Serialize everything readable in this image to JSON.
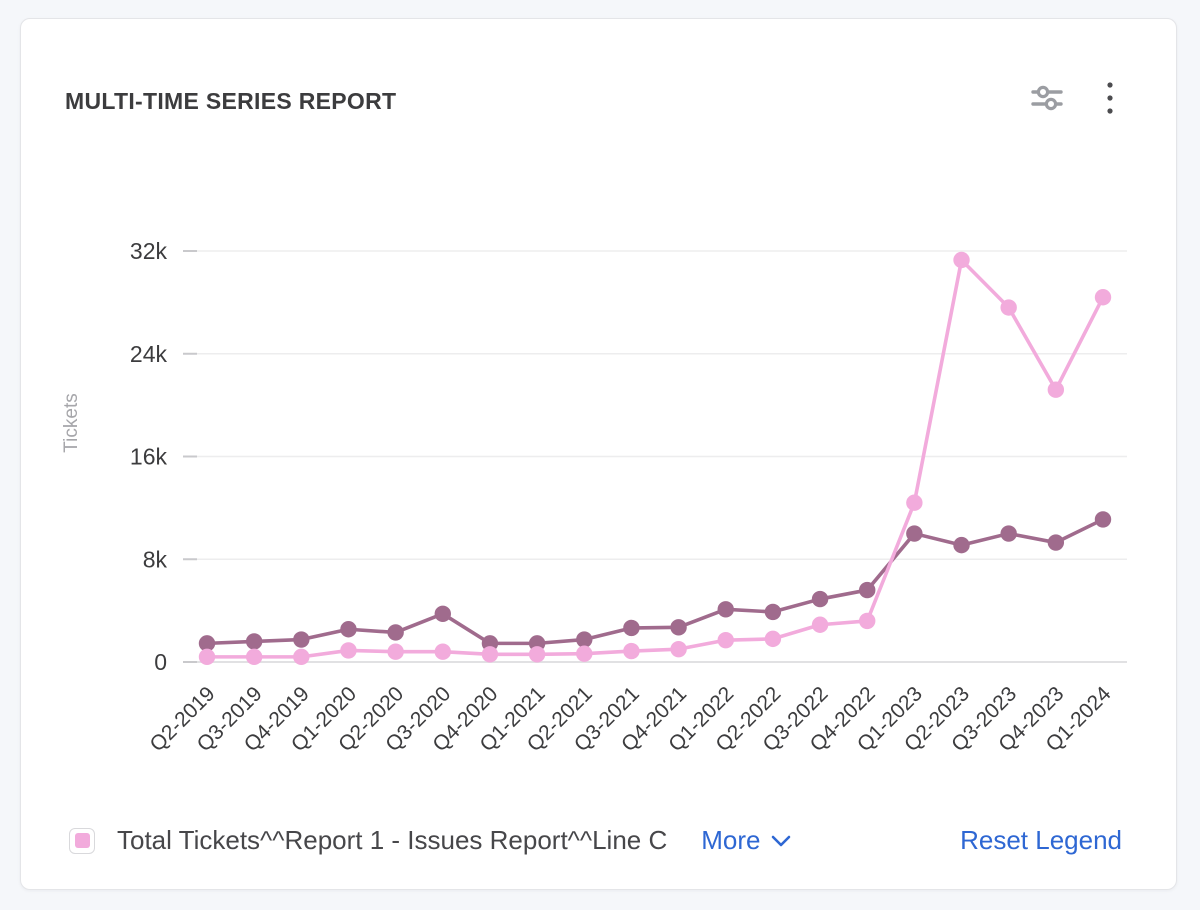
{
  "header": {
    "title": "MULTI-TIME SERIES REPORT"
  },
  "legend": {
    "items": [
      {
        "label": "Total Tickets^^Report 1 - Issues Report^^Line C",
        "color": "#f2abdc"
      }
    ],
    "more_label": "More",
    "reset_label": "Reset Legend",
    "link_color": "#2e67d3"
  },
  "chart_data": {
    "type": "line",
    "title": "MULTI-TIME SERIES REPORT",
    "xlabel": "",
    "ylabel": "Tickets",
    "x": [
      "Q2-2019",
      "Q3-2019",
      "Q4-2019",
      "Q1-2020",
      "Q2-2020",
      "Q3-2020",
      "Q4-2020",
      "Q1-2021",
      "Q2-2021",
      "Q3-2021",
      "Q4-2021",
      "Q1-2022",
      "Q2-2022",
      "Q3-2022",
      "Q4-2022",
      "Q1-2023",
      "Q2-2023",
      "Q3-2023",
      "Q4-2023",
      "Q1-2024"
    ],
    "series": [
      {
        "name": "Total Tickets^^Report 1 - Issues Report^^Line C",
        "color": "#f2abdc",
        "values": [
          400,
          400,
          400,
          900,
          800,
          800,
          600,
          600,
          650,
          850,
          1000,
          1700,
          1800,
          2900,
          3200,
          12400,
          31300,
          27600,
          21200,
          28400
        ]
      },
      {
        "name": "",
        "color": "#a06b8d",
        "values": [
          1450,
          1600,
          1750,
          2550,
          2300,
          3750,
          1450,
          1450,
          1750,
          2650,
          2700,
          4100,
          3900,
          4900,
          5600,
          10000,
          9100,
          10000,
          9300,
          11100
        ]
      }
    ],
    "y_ticks": [
      0,
      8000,
      16000,
      24000,
      32000
    ],
    "y_tick_labels": [
      "0",
      "8k",
      "16k",
      "24k",
      "32k"
    ],
    "ylim": [
      0,
      32000
    ],
    "grid": true,
    "legend_position": "bottom",
    "style": {
      "grid_color": "#ededee",
      "axis_line_color": "#e1e1e3",
      "tick_color": "#c9c9cc",
      "tick_label_color": "#3c3c3e",
      "axis_title_color": "#a6a6aa"
    }
  }
}
